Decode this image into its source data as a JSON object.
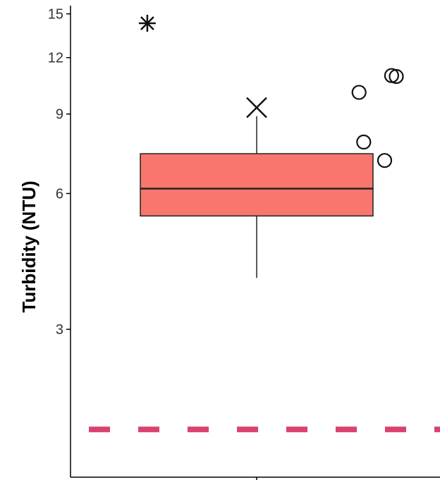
{
  "chart_data": {
    "type": "box",
    "title": "",
    "xlabel": "",
    "ylabel": "Turbidity (NTU)",
    "yscale": "log",
    "ylim": [
      1.5,
      15.2
    ],
    "yticks": [
      3,
      6,
      9,
      12,
      15
    ],
    "grid": false,
    "legend": "none",
    "box": {
      "q1": 5.35,
      "median": 6.15,
      "q3": 7.35,
      "whisker_low": 3.9,
      "whisker_high": 8.9,
      "fill": "#f8766d",
      "outline": "#222222"
    },
    "outliers": [
      {
        "x": 0.44,
        "y": 10.05
      },
      {
        "x": 0.46,
        "y": 7.8
      },
      {
        "x": 0.55,
        "y": 7.1
      },
      {
        "x": 0.58,
        "y": 10.95
      },
      {
        "x": 0.6,
        "y": 10.9
      }
    ],
    "markers": [
      {
        "shape": "asterisk",
        "x": -0.47,
        "y": 14.3
      },
      {
        "shape": "x",
        "x": 0.0,
        "y": 9.3
      }
    ],
    "reference_line": {
      "y": 1.8,
      "style": "dashed",
      "color": "#d9426f"
    }
  }
}
